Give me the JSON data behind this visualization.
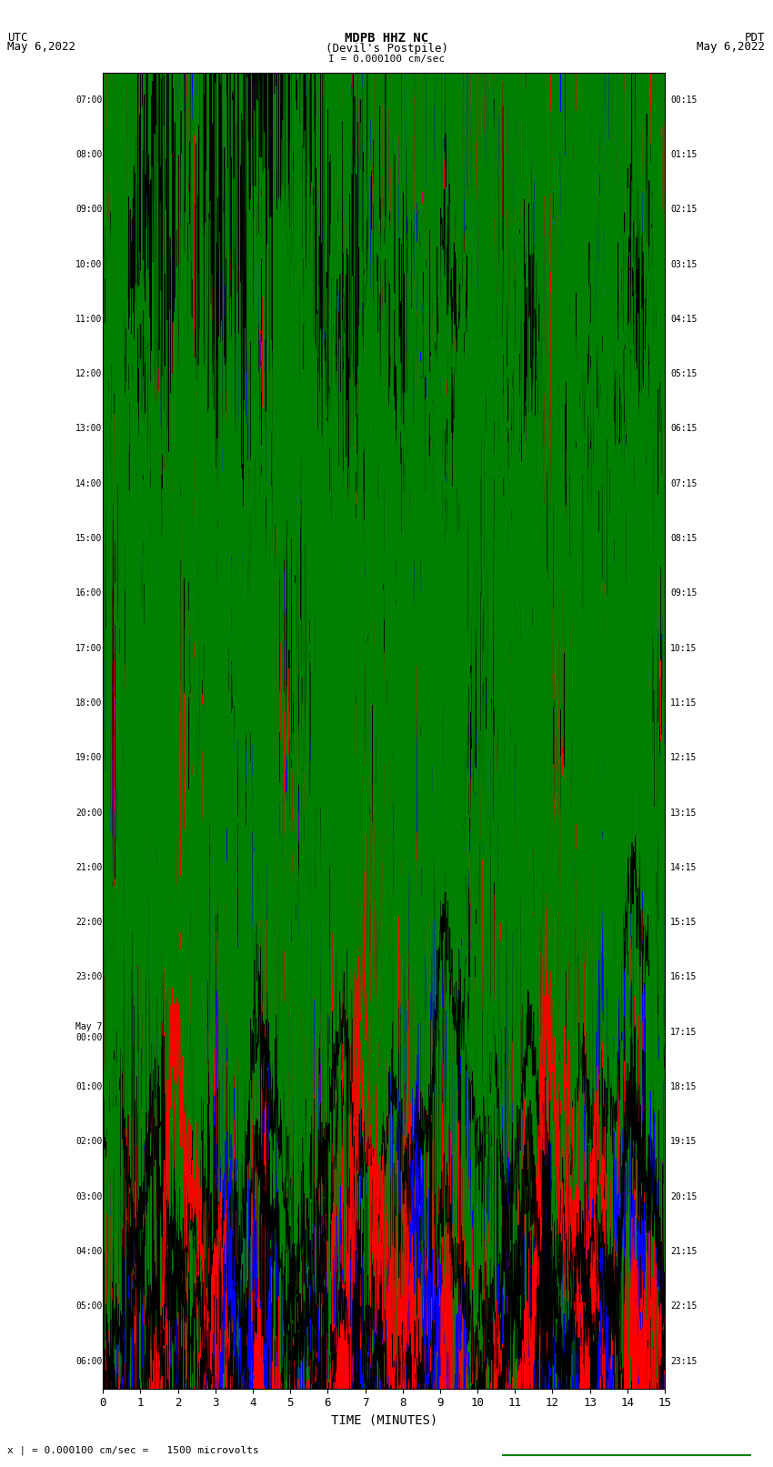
{
  "title_line1": "MDPB HHZ NC",
  "title_line2": "(Devil's Postpile)",
  "scale_label": "I = 0.000100 cm/sec",
  "utc_label": "UTC",
  "utc_date": "May 6,2022",
  "pdt_label": "PDT",
  "pdt_date": "May 6,2022",
  "bottom_label": "x | = 0.000100 cm/sec =   1500 microvolts",
  "xlabel": "TIME (MINUTES)",
  "num_rows": 24,
  "minutes_per_row": 15,
  "colors": [
    "red",
    "green",
    "blue",
    "black"
  ],
  "bg_color": "white",
  "grid_major_color": "#000000",
  "grid_minor_color": "#aaaaaa",
  "grid_blue_color": "#6666ff",
  "left_times_utc": [
    "07:00",
    "08:00",
    "09:00",
    "10:00",
    "11:00",
    "12:00",
    "13:00",
    "14:00",
    "15:00",
    "16:00",
    "17:00",
    "18:00",
    "19:00",
    "20:00",
    "21:00",
    "22:00",
    "23:00",
    "May 7\n00:00",
    "01:00",
    "02:00",
    "03:00",
    "04:00",
    "05:00",
    "06:00"
  ],
  "right_times_pdt": [
    "00:15",
    "01:15",
    "02:15",
    "03:15",
    "04:15",
    "05:15",
    "06:15",
    "07:15",
    "08:15",
    "09:15",
    "10:15",
    "11:15",
    "12:15",
    "13:15",
    "14:15",
    "15:15",
    "16:15",
    "17:15",
    "18:15",
    "19:15",
    "20:15",
    "21:15",
    "22:15",
    "23:15"
  ],
  "xticks": [
    0,
    1,
    2,
    3,
    4,
    5,
    6,
    7,
    8,
    9,
    10,
    11,
    12,
    13,
    14,
    15
  ],
  "figsize": [
    8.5,
    16.13
  ],
  "dpi": 100,
  "n_points_per_row": 1800,
  "amplitude_scale": 2.5,
  "lw": 0.5
}
